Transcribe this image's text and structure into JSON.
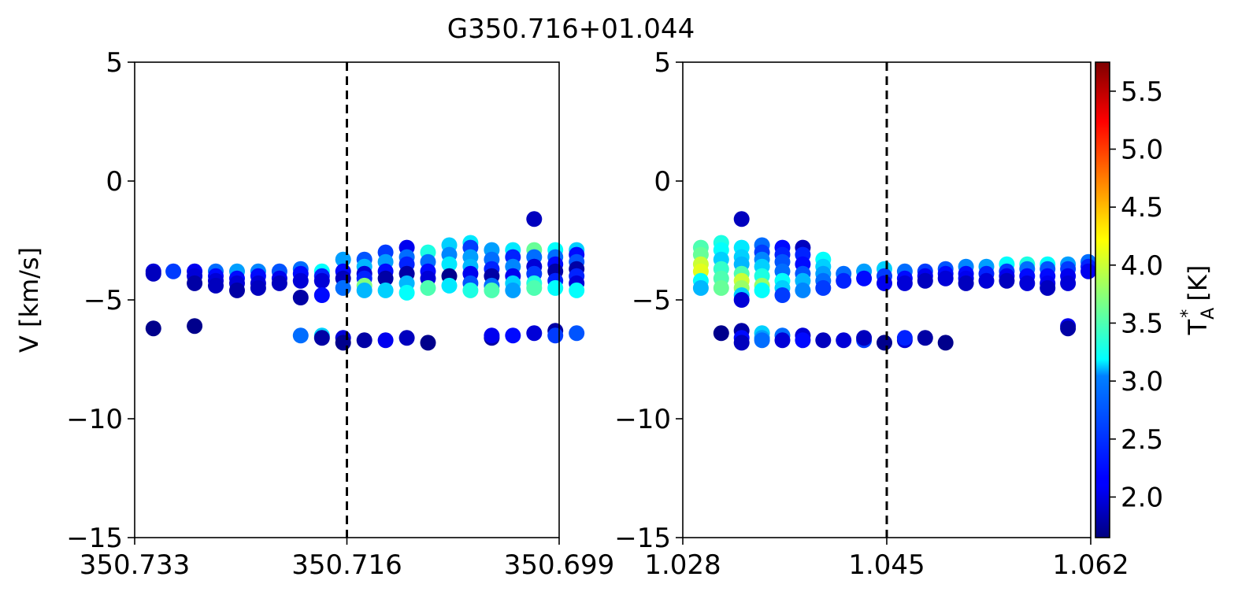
{
  "chart_data": {
    "type": "scatter",
    "title": "G350.716+01.044",
    "ylabel": "V [km/s]",
    "ylim": [
      -15,
      5
    ],
    "yticks": [
      5,
      0,
      -5,
      -10,
      -15
    ],
    "ytick_labels": [
      "5",
      "0",
      "−5",
      "−10",
      "−15"
    ],
    "reference_line": "dashed",
    "colorbar": {
      "label": "T_A^* [K]",
      "label_main": "T",
      "label_sup": "*",
      "label_sub": "A",
      "label_units": " [K]",
      "colormap": "jet",
      "range": [
        1.65,
        5.75
      ],
      "ticks": [
        2.0,
        2.5,
        3.0,
        3.5,
        4.0,
        4.5,
        5.0,
        5.5
      ],
      "tick_labels": [
        "2.0",
        "2.5",
        "3.0",
        "3.5",
        "4.0",
        "4.5",
        "5.0",
        "5.5"
      ]
    },
    "panels": [
      {
        "name": "longitude",
        "xlim": [
          350.733,
          350.699
        ],
        "xticks": [
          350.733,
          350.716,
          350.699
        ],
        "xtick_labels": [
          "350.733",
          "350.716",
          "350.699"
        ],
        "reference_x": 350.716,
        "points": [
          [
            350.7315,
            -3.8,
            2.0
          ],
          [
            350.7315,
            -3.9,
            1.9
          ],
          [
            350.7315,
            -6.2,
            1.7
          ],
          [
            350.7299,
            -3.8,
            2.4
          ],
          [
            350.7282,
            -3.8,
            2.1
          ],
          [
            350.7282,
            -4.0,
            2.0
          ],
          [
            350.7282,
            -4.3,
            1.8
          ],
          [
            350.7282,
            -6.1,
            1.7
          ],
          [
            350.7265,
            -3.8,
            2.6
          ],
          [
            350.7265,
            -4.0,
            2.2
          ],
          [
            350.7265,
            -4.2,
            2.0
          ],
          [
            350.7265,
            -4.4,
            1.9
          ],
          [
            350.7248,
            -3.8,
            2.8
          ],
          [
            350.7248,
            -4.1,
            2.2
          ],
          [
            350.7248,
            -4.3,
            2.0
          ],
          [
            350.7248,
            -4.6,
            1.8
          ],
          [
            350.7231,
            -3.8,
            2.7
          ],
          [
            350.7231,
            -4.0,
            2.2
          ],
          [
            350.7231,
            -4.3,
            2.0
          ],
          [
            350.7231,
            -4.5,
            1.9
          ],
          [
            350.7214,
            -3.8,
            2.5
          ],
          [
            350.7214,
            -4.1,
            2.1
          ],
          [
            350.7214,
            -4.3,
            1.9
          ],
          [
            350.7197,
            -3.7,
            2.6
          ],
          [
            350.7197,
            -3.9,
            2.2
          ],
          [
            350.7197,
            -4.2,
            2.0
          ],
          [
            350.7197,
            -4.9,
            1.8
          ],
          [
            350.7197,
            -6.5,
            2.6
          ],
          [
            350.718,
            -3.8,
            3.2
          ],
          [
            350.718,
            -4.0,
            2.3
          ],
          [
            350.718,
            -4.2,
            2.0
          ],
          [
            350.718,
            -4.8,
            2.2
          ],
          [
            350.718,
            -6.5,
            3.0
          ],
          [
            350.718,
            -6.6,
            1.8
          ],
          [
            350.7163,
            -3.3,
            2.8
          ],
          [
            350.7163,
            -3.8,
            2.2
          ],
          [
            350.7163,
            -4.1,
            1.9
          ],
          [
            350.7163,
            -4.5,
            2.6
          ],
          [
            350.7163,
            -6.6,
            2.0
          ],
          [
            350.7163,
            -6.8,
            1.7
          ],
          [
            350.7146,
            -3.3,
            2.5
          ],
          [
            350.7146,
            -3.6,
            2.9
          ],
          [
            350.7146,
            -3.9,
            2.0
          ],
          [
            350.7146,
            -4.1,
            2.3
          ],
          [
            350.7146,
            -4.4,
            3.7
          ],
          [
            350.7146,
            -4.6,
            2.9
          ],
          [
            350.7146,
            -6.7,
            1.8
          ],
          [
            350.7129,
            -3.0,
            2.4
          ],
          [
            350.7129,
            -3.4,
            2.8
          ],
          [
            350.7129,
            -3.8,
            2.2
          ],
          [
            350.7129,
            -4.1,
            1.8
          ],
          [
            350.7129,
            -4.6,
            3.0
          ],
          [
            350.7129,
            -6.7,
            2.1
          ],
          [
            350.7112,
            -2.8,
            2.1
          ],
          [
            350.7112,
            -3.2,
            2.6
          ],
          [
            350.7112,
            -3.5,
            2.3
          ],
          [
            350.7112,
            -3.9,
            1.8
          ],
          [
            350.7112,
            -4.3,
            2.9
          ],
          [
            350.7112,
            -4.7,
            3.2
          ],
          [
            350.7112,
            -6.6,
            1.9
          ],
          [
            350.7095,
            -3.0,
            3.3
          ],
          [
            350.7095,
            -3.4,
            2.6
          ],
          [
            350.7095,
            -3.8,
            2.2
          ],
          [
            350.7095,
            -4.1,
            2.0
          ],
          [
            350.7095,
            -4.5,
            3.5
          ],
          [
            350.7095,
            -6.8,
            1.7
          ],
          [
            350.7078,
            -2.7,
            3.0
          ],
          [
            350.7078,
            -3.1,
            2.7
          ],
          [
            350.7078,
            -3.5,
            3.1
          ],
          [
            350.7078,
            -4.0,
            1.7
          ],
          [
            350.7078,
            -4.4,
            3.1
          ],
          [
            350.7061,
            -2.6,
            3.1
          ],
          [
            350.7061,
            -2.8,
            2.4
          ],
          [
            350.7061,
            -3.2,
            2.8
          ],
          [
            350.7061,
            -3.6,
            2.9
          ],
          [
            350.7061,
            -3.9,
            2.1
          ],
          [
            350.7061,
            -4.3,
            2.5
          ],
          [
            350.7061,
            -4.6,
            3.3
          ],
          [
            350.7044,
            -2.9,
            2.8
          ],
          [
            350.7044,
            -3.3,
            2.6
          ],
          [
            350.7044,
            -3.7,
            2.3
          ],
          [
            350.7044,
            -4.0,
            1.8
          ],
          [
            350.7044,
            -4.4,
            2.6
          ],
          [
            350.7044,
            -4.6,
            3.5
          ],
          [
            350.7044,
            -6.6,
            1.8
          ],
          [
            350.7044,
            -6.5,
            2.1
          ],
          [
            350.7027,
            -2.9,
            3.1
          ],
          [
            350.7027,
            -3.2,
            2.3
          ],
          [
            350.7027,
            -3.6,
            2.7
          ],
          [
            350.7027,
            -4.0,
            2.1
          ],
          [
            350.7027,
            -4.3,
            3.0
          ],
          [
            350.7027,
            -4.6,
            2.8
          ],
          [
            350.7027,
            -6.5,
            2.2
          ],
          [
            350.701,
            -1.6,
            1.9
          ],
          [
            350.701,
            -2.9,
            3.6
          ],
          [
            350.701,
            -3.2,
            2.6
          ],
          [
            350.701,
            -3.6,
            2.0
          ],
          [
            350.701,
            -3.9,
            2.4
          ],
          [
            350.701,
            -4.3,
            3.3
          ],
          [
            350.701,
            -4.5,
            3.5
          ],
          [
            350.701,
            -6.4,
            2.0
          ],
          [
            350.6993,
            -2.9,
            3.2
          ],
          [
            350.6993,
            -3.2,
            2.6
          ],
          [
            350.6993,
            -3.5,
            2.2
          ],
          [
            350.6993,
            -3.8,
            1.8
          ],
          [
            350.6993,
            -4.2,
            2.3
          ],
          [
            350.6993,
            -4.5,
            3.2
          ],
          [
            350.6993,
            -6.3,
            1.8
          ],
          [
            350.6993,
            -6.5,
            2.4
          ],
          [
            350.6976,
            -2.9,
            3.0
          ],
          [
            350.6976,
            -3.1,
            2.2
          ],
          [
            350.6976,
            -3.4,
            2.5
          ],
          [
            350.6976,
            -3.7,
            1.8
          ],
          [
            350.6976,
            -4.0,
            2.3
          ],
          [
            350.6976,
            -4.3,
            2.0
          ],
          [
            350.6976,
            -4.6,
            3.2
          ],
          [
            350.6976,
            -6.4,
            2.5
          ]
        ]
      },
      {
        "name": "latitude",
        "xlim": [
          1.028,
          1.062
        ],
        "xticks": [
          1.028,
          1.045,
          1.062
        ],
        "xtick_labels": [
          "1.028",
          "1.045",
          "1.062"
        ],
        "reference_x": 1.045,
        "points": [
          [
            1.0295,
            -2.8,
            3.5
          ],
          [
            1.0295,
            -3.1,
            3.6
          ],
          [
            1.0295,
            -3.5,
            4.0
          ],
          [
            1.0295,
            -3.8,
            4.1
          ],
          [
            1.0295,
            -4.2,
            3.2
          ],
          [
            1.0295,
            -4.5,
            2.9
          ],
          [
            1.0312,
            -2.6,
            3.3
          ],
          [
            1.0312,
            -2.9,
            3.2
          ],
          [
            1.0312,
            -3.3,
            3.0
          ],
          [
            1.0312,
            -3.7,
            3.4
          ],
          [
            1.0312,
            -4.1,
            3.5
          ],
          [
            1.0312,
            -4.5,
            3.6
          ],
          [
            1.0312,
            -6.4,
            1.7
          ],
          [
            1.0329,
            -1.6,
            1.9
          ],
          [
            1.0329,
            -2.8,
            3.1
          ],
          [
            1.0329,
            -3.2,
            3.0
          ],
          [
            1.0329,
            -3.5,
            2.9
          ],
          [
            1.0329,
            -3.9,
            3.5
          ],
          [
            1.0329,
            -4.2,
            4.0
          ],
          [
            1.0329,
            -4.5,
            3.8
          ],
          [
            1.0329,
            -4.8,
            3.0
          ],
          [
            1.0329,
            -5.0,
            2.0
          ],
          [
            1.0329,
            -6.3,
            1.8
          ],
          [
            1.0329,
            -6.6,
            2.2
          ],
          [
            1.0329,
            -6.8,
            1.9
          ],
          [
            1.0346,
            -2.7,
            2.6
          ],
          [
            1.0346,
            -3.0,
            2.4
          ],
          [
            1.0346,
            -3.3,
            2.7
          ],
          [
            1.0346,
            -3.6,
            3.0
          ],
          [
            1.0346,
            -4.0,
            3.3
          ],
          [
            1.0346,
            -4.4,
            3.8
          ],
          [
            1.0346,
            -4.6,
            3.2
          ],
          [
            1.0346,
            -6.4,
            3.0
          ],
          [
            1.0346,
            -6.6,
            2.8
          ],
          [
            1.0346,
            -6.7,
            2.6
          ],
          [
            1.0363,
            -2.8,
            2.2
          ],
          [
            1.0363,
            -3.1,
            2.3
          ],
          [
            1.0363,
            -3.4,
            2.5
          ],
          [
            1.0363,
            -3.8,
            2.6
          ],
          [
            1.0363,
            -4.2,
            3.2
          ],
          [
            1.0363,
            -4.5,
            3.0
          ],
          [
            1.0363,
            -4.8,
            2.4
          ],
          [
            1.0363,
            -6.5,
            2.6
          ],
          [
            1.0363,
            -6.7,
            2.0
          ],
          [
            1.038,
            -2.8,
            1.9
          ],
          [
            1.038,
            -3.1,
            2.3
          ],
          [
            1.038,
            -3.5,
            2.2
          ],
          [
            1.038,
            -3.9,
            2.5
          ],
          [
            1.038,
            -4.2,
            2.9
          ],
          [
            1.038,
            -4.6,
            2.7
          ],
          [
            1.038,
            -6.5,
            2.0
          ],
          [
            1.038,
            -6.7,
            2.2
          ],
          [
            1.0397,
            -3.3,
            3.2
          ],
          [
            1.0397,
            -3.6,
            3.0
          ],
          [
            1.0397,
            -3.9,
            2.8
          ],
          [
            1.0397,
            -4.2,
            2.6
          ],
          [
            1.0397,
            -4.5,
            2.4
          ],
          [
            1.0397,
            -6.7,
            1.9
          ],
          [
            1.0414,
            -3.9,
            2.6
          ],
          [
            1.0414,
            -4.2,
            2.3
          ],
          [
            1.0414,
            -6.7,
            2.0
          ],
          [
            1.0431,
            -3.8,
            2.8
          ],
          [
            1.0431,
            -4.1,
            2.2
          ],
          [
            1.0431,
            -6.7,
            2.4
          ],
          [
            1.0431,
            -6.6,
            1.9
          ],
          [
            1.0448,
            -3.7,
            3.0
          ],
          [
            1.0448,
            -4.0,
            2.4
          ],
          [
            1.0448,
            -4.3,
            2.1
          ],
          [
            1.0448,
            -6.8,
            1.7
          ],
          [
            1.0465,
            -3.8,
            2.6
          ],
          [
            1.0465,
            -4.1,
            2.2
          ],
          [
            1.0465,
            -4.3,
            2.0
          ],
          [
            1.0465,
            -6.7,
            2.0
          ],
          [
            1.0465,
            -6.6,
            2.3
          ],
          [
            1.0482,
            -3.8,
            2.4
          ],
          [
            1.0482,
            -4.0,
            2.1
          ],
          [
            1.0482,
            -4.2,
            1.9
          ],
          [
            1.0482,
            -6.6,
            1.8
          ],
          [
            1.0499,
            -3.7,
            2.5
          ],
          [
            1.0499,
            -3.9,
            2.2
          ],
          [
            1.0499,
            -4.1,
            2.0
          ],
          [
            1.0499,
            -6.8,
            1.7
          ],
          [
            1.0516,
            -3.6,
            2.7
          ],
          [
            1.0516,
            -3.9,
            2.2
          ],
          [
            1.0516,
            -4.1,
            2.1
          ],
          [
            1.0516,
            -4.3,
            1.9
          ],
          [
            1.0533,
            -3.6,
            2.8
          ],
          [
            1.0533,
            -3.9,
            2.3
          ],
          [
            1.0533,
            -4.2,
            2.0
          ],
          [
            1.055,
            -3.5,
            3.2
          ],
          [
            1.055,
            -3.8,
            2.4
          ],
          [
            1.055,
            -4.0,
            2.1
          ],
          [
            1.055,
            -4.2,
            1.9
          ],
          [
            1.0567,
            -3.5,
            3.3
          ],
          [
            1.0567,
            -3.7,
            2.6
          ],
          [
            1.0567,
            -4.0,
            2.2
          ],
          [
            1.0567,
            -4.3,
            2.0
          ],
          [
            1.0584,
            -3.5,
            3.2
          ],
          [
            1.0584,
            -3.7,
            2.5
          ],
          [
            1.0584,
            -4.0,
            2.2
          ],
          [
            1.0584,
            -4.3,
            2.1
          ],
          [
            1.0584,
            -4.5,
            1.9
          ],
          [
            1.0601,
            -3.5,
            2.8
          ],
          [
            1.0601,
            -3.7,
            2.4
          ],
          [
            1.0601,
            -4.0,
            2.1
          ],
          [
            1.0601,
            -4.3,
            2.0
          ],
          [
            1.0601,
            -6.1,
            2.1
          ],
          [
            1.0601,
            -6.2,
            1.8
          ],
          [
            1.0618,
            -3.4,
            2.6
          ],
          [
            1.0618,
            -3.6,
            2.3
          ],
          [
            1.0618,
            -3.8,
            2.1
          ]
        ]
      }
    ]
  }
}
